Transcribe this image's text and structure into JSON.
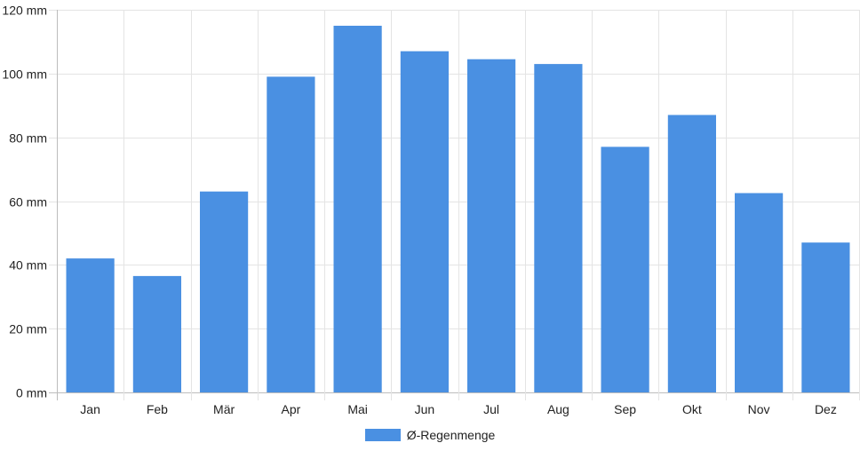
{
  "chart_data": {
    "type": "bar",
    "categories": [
      "Jan",
      "Feb",
      "Mär",
      "Apr",
      "Mai",
      "Jun",
      "Jul",
      "Aug",
      "Sep",
      "Okt",
      "Nov",
      "Dez"
    ],
    "series": [
      {
        "name": "Ø-Regenmenge",
        "values": [
          42,
          36.5,
          63,
          99,
          115,
          107,
          104.5,
          103,
          77,
          87,
          62.5,
          47
        ],
        "color": "#4a90e2"
      }
    ],
    "ylim": [
      0,
      120
    ],
    "yticks": [
      0,
      20,
      40,
      60,
      80,
      100,
      120
    ],
    "ytick_unit": "mm",
    "grid": true,
    "legend_position": "bottom"
  }
}
